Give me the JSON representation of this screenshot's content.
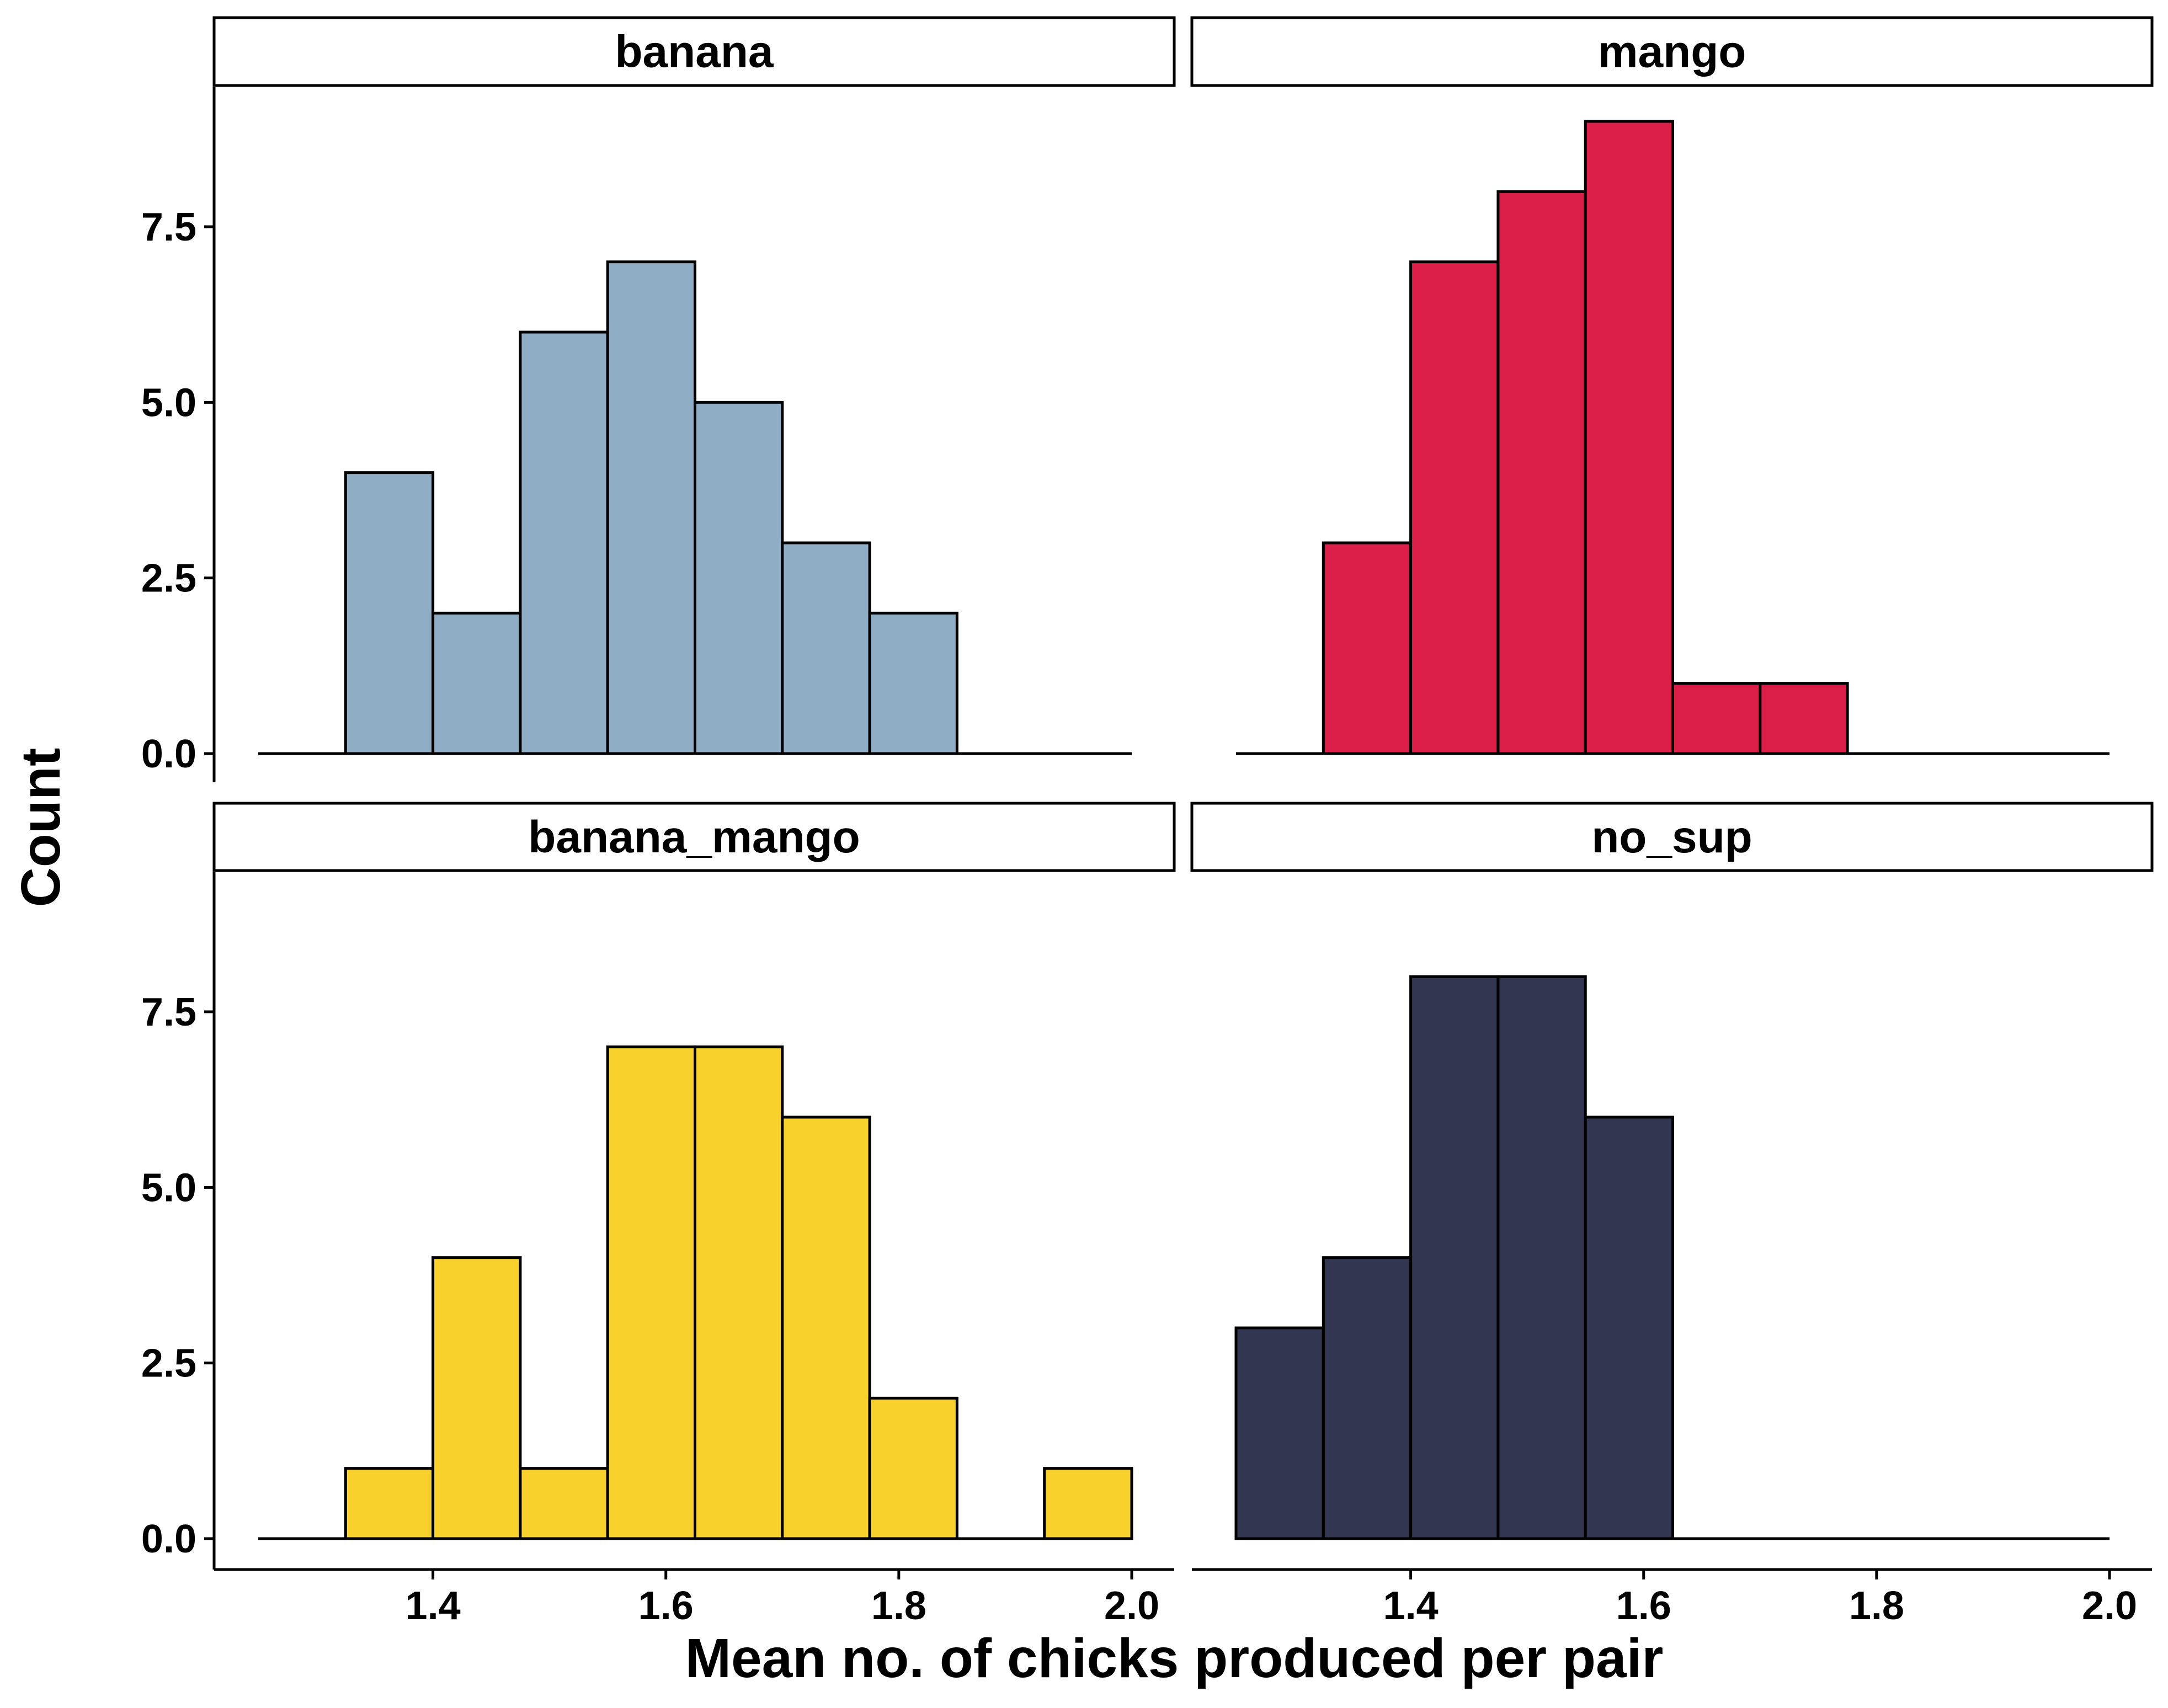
{
  "chart_data": {
    "type": "bar",
    "subtype": "faceted-histogram",
    "xlabel": "Mean no. of chicks produced per pair",
    "ylabel": "Count",
    "xlim": [
      1.25,
      2.0
    ],
    "ylim": [
      0,
      9
    ],
    "x_ticks": [
      "1.4",
      "1.6",
      "1.8",
      "2.0"
    ],
    "y_ticks": [
      "0.0",
      "2.5",
      "5.0",
      "7.5"
    ],
    "bin_width": 0.075,
    "grid": false,
    "legend": "none",
    "panels": [
      {
        "name": "banana",
        "color": "#8FAEC6",
        "bins": [
          {
            "x0": 1.325,
            "x1": 1.4,
            "count": 4
          },
          {
            "x0": 1.4,
            "x1": 1.475,
            "count": 2
          },
          {
            "x0": 1.475,
            "x1": 1.55,
            "count": 6
          },
          {
            "x0": 1.55,
            "x1": 1.625,
            "count": 7
          },
          {
            "x0": 1.625,
            "x1": 1.7,
            "count": 5
          },
          {
            "x0": 1.7,
            "x1": 1.775,
            "count": 3
          },
          {
            "x0": 1.775,
            "x1": 1.85,
            "count": 2
          }
        ]
      },
      {
        "name": "mango",
        "color": "#DC1F48",
        "bins": [
          {
            "x0": 1.325,
            "x1": 1.4,
            "count": 3
          },
          {
            "x0": 1.4,
            "x1": 1.475,
            "count": 7
          },
          {
            "x0": 1.475,
            "x1": 1.55,
            "count": 8
          },
          {
            "x0": 1.55,
            "x1": 1.625,
            "count": 9
          },
          {
            "x0": 1.625,
            "x1": 1.7,
            "count": 1
          },
          {
            "x0": 1.7,
            "x1": 1.775,
            "count": 1
          }
        ]
      },
      {
        "name": "banana_mango",
        "color": "#F9D12C",
        "bins": [
          {
            "x0": 1.325,
            "x1": 1.4,
            "count": 1
          },
          {
            "x0": 1.4,
            "x1": 1.475,
            "count": 4
          },
          {
            "x0": 1.475,
            "x1": 1.55,
            "count": 1
          },
          {
            "x0": 1.55,
            "x1": 1.625,
            "count": 7
          },
          {
            "x0": 1.625,
            "x1": 1.7,
            "count": 7
          },
          {
            "x0": 1.7,
            "x1": 1.775,
            "count": 6
          },
          {
            "x0": 1.775,
            "x1": 1.85,
            "count": 2
          },
          {
            "x0": 1.925,
            "x1": 2.0,
            "count": 1
          }
        ]
      },
      {
        "name": "no_sup",
        "color": "#323651",
        "bins": [
          {
            "x0": 1.25,
            "x1": 1.325,
            "count": 3
          },
          {
            "x0": 1.325,
            "x1": 1.4,
            "count": 4
          },
          {
            "x0": 1.4,
            "x1": 1.475,
            "count": 8
          },
          {
            "x0": 1.475,
            "x1": 1.55,
            "count": 8
          },
          {
            "x0": 1.55,
            "x1": 1.625,
            "count": 6
          }
        ]
      }
    ]
  }
}
